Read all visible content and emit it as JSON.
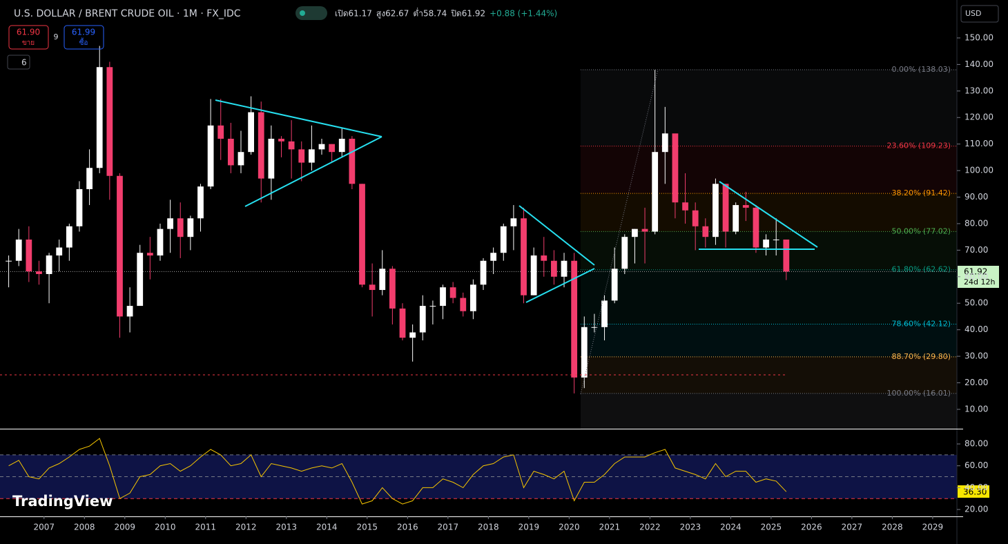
{
  "header": {
    "symbol": "U.S. DOLLAR / BRENT CRUDE OIL · 1M · FX_IDC",
    "stats": [
      {
        "label": "เปิด",
        "value": "61.17"
      },
      {
        "label": "สูง",
        "value": "62.67"
      },
      {
        "label": "ต่ำ",
        "value": "58.74"
      },
      {
        "label": "ปิด",
        "value": "61.92"
      },
      {
        "label": "",
        "value": "+0.88 (+1.44%)"
      }
    ],
    "sell_price": "61.90",
    "sell_label": "ขาย",
    "spread": "9",
    "buy_price": "61.99",
    "buy_label": "ซื้อ",
    "indicators": "6",
    "currency": "USD",
    "logo": "TradingView",
    "price_tag": "61.92",
    "countdown": "24d 12h",
    "rsi_tag": "36.30"
  },
  "chart_data": [
    {
      "type": "candlestick",
      "up_color": "#ffffff",
      "down_color": "#f23d6d",
      "x": [
        2006.125,
        2006.375,
        2006.625,
        2006.875,
        2007.125,
        2007.375,
        2007.625,
        2007.875,
        2008.125,
        2008.375,
        2008.625,
        2008.875,
        2009.125,
        2009.375,
        2009.625,
        2009.875,
        2010.125,
        2010.375,
        2010.625,
        2010.875,
        2011.125,
        2011.375,
        2011.625,
        2011.875,
        2012.125,
        2012.375,
        2012.625,
        2012.875,
        2013.125,
        2013.375,
        2013.625,
        2013.875,
        2014.125,
        2014.375,
        2014.625,
        2014.875,
        2015.125,
        2015.375,
        2015.625,
        2015.875,
        2016.125,
        2016.375,
        2016.625,
        2016.875,
        2017.125,
        2017.375,
        2017.625,
        2017.875,
        2018.125,
        2018.375,
        2018.625,
        2018.875,
        2019.125,
        2019.375,
        2019.625,
        2019.875,
        2020.125,
        2020.375,
        2020.625,
        2020.875,
        2021.125,
        2021.375,
        2021.625,
        2021.875,
        2022.125,
        2022.375,
        2022.625,
        2022.875,
        2023.125,
        2023.375,
        2023.625,
        2023.875,
        2024.125,
        2024.375,
        2024.625,
        2024.875,
        2025.125,
        2025.375
      ],
      "close": [
        66,
        74,
        62,
        61,
        68,
        71,
        79,
        93,
        101,
        139,
        98,
        45,
        49,
        69,
        68,
        78,
        82,
        75,
        82,
        94,
        117,
        112,
        102,
        107,
        122,
        97,
        112,
        111,
        108,
        103,
        108,
        110,
        107,
        112,
        95,
        57,
        55,
        63,
        48,
        37,
        39,
        49,
        49,
        56,
        52,
        47,
        57,
        66,
        69,
        79,
        82,
        53,
        68,
        66,
        60,
        66,
        22,
        41,
        41,
        51,
        63,
        75,
        78,
        77,
        107,
        114,
        88,
        85,
        79,
        75,
        95,
        77,
        87,
        86,
        71,
        74,
        74,
        61.92
      ],
      "high": [
        68,
        78,
        79,
        66,
        69,
        74,
        80,
        96,
        108,
        147,
        141,
        99,
        56,
        72,
        75,
        80,
        89,
        88,
        83,
        95,
        127,
        127,
        118,
        115,
        128,
        126,
        117,
        113,
        119,
        111,
        117,
        112,
        110,
        116,
        113,
        95,
        65,
        70,
        64,
        50,
        42,
        53,
        51,
        57,
        58,
        54,
        59,
        67,
        71,
        80,
        87,
        86,
        71,
        75,
        70,
        69,
        69,
        45,
        46,
        53,
        71,
        76,
        78,
        86,
        138,
        124,
        113,
        99,
        88,
        82,
        97,
        95,
        88,
        92,
        87,
        76,
        82,
        62.67
      ],
      "low": [
        56,
        64,
        58,
        57,
        50,
        62,
        66,
        77,
        87,
        99,
        89,
        37,
        39,
        50,
        59,
        66,
        69,
        67,
        70,
        77,
        93,
        104,
        99,
        99,
        106,
        88,
        89,
        105,
        97,
        96,
        100,
        106,
        103,
        105,
        93,
        56,
        45,
        53,
        42,
        36,
        28,
        36,
        42,
        44,
        50,
        45,
        44,
        55,
        61,
        66,
        70,
        50,
        53,
        60,
        57,
        56,
        16,
        18,
        39,
        36,
        50,
        61,
        65,
        65,
        76,
        95,
        82,
        80,
        70,
        71,
        72,
        71,
        76,
        81,
        69,
        68,
        68,
        58.74
      ],
      "xlim": [
        2005.91,
        2029.6
      ],
      "xticks": [
        2007,
        2008,
        2009,
        2010,
        2011,
        2012,
        2013,
        2014,
        2015,
        2016,
        2017,
        2018,
        2019,
        2020,
        2021,
        2022,
        2023,
        2024,
        2025,
        2026,
        2027,
        2028,
        2029
      ],
      "ylim": [
        2.7,
        164.3
      ],
      "yticks": [
        {
          "value": 10,
          "label": "10.00"
        },
        {
          "value": 20,
          "label": "20.00"
        },
        {
          "value": 30,
          "label": "30.00"
        },
        {
          "value": 40,
          "label": "40.00"
        },
        {
          "value": 50,
          "label": "50.00"
        },
        {
          "value": 60,
          "label": "60.00"
        },
        {
          "value": 70,
          "label": "70.00"
        },
        {
          "value": 80,
          "label": "80.00"
        },
        {
          "value": 90,
          "label": "90.00"
        },
        {
          "value": 100,
          "label": "100.00"
        },
        {
          "value": 110,
          "label": "110.00"
        },
        {
          "value": 120,
          "label": "120.00"
        },
        {
          "value": 130,
          "label": "130.00"
        },
        {
          "value": 140,
          "label": "140.00"
        },
        {
          "value": 150,
          "label": "150.00"
        }
      ],
      "last_price": 61.92,
      "fib_levels": [
        {
          "label": "0.00% (138.03)",
          "value": 138.03,
          "color": "#787b86"
        },
        {
          "label": "23.60% (109.23)",
          "value": 109.23,
          "color": "#f23645"
        },
        {
          "label": "38.20% (91.42)",
          "value": 91.42,
          "color": "#ff9800"
        },
        {
          "label": "50.00% (77.02)",
          "value": 77.02,
          "color": "#4caf50"
        },
        {
          "label": "61.80% (62.62)",
          "value": 62.62,
          "color": "#089981"
        },
        {
          "label": "78.60% (42.12)",
          "value": 42.12,
          "color": "#00bcd4"
        },
        {
          "label": "88.70% (29.80)",
          "value": 29.8,
          "color": "#ffb74d"
        },
        {
          "label": "100.00% (16.01)",
          "value": 16.01,
          "color": "#787b86"
        }
      ]
    },
    {
      "type": "line",
      "color": "#f7c600",
      "values": [
        60,
        65,
        50,
        48,
        58,
        62,
        68,
        75,
        78,
        85,
        60,
        30,
        35,
        50,
        52,
        60,
        62,
        55,
        60,
        68,
        75,
        70,
        60,
        62,
        70,
        50,
        62,
        60,
        58,
        55,
        58,
        60,
        58,
        62,
        45,
        25,
        28,
        40,
        30,
        25,
        28,
        40,
        40,
        48,
        45,
        40,
        52,
        60,
        62,
        68,
        70,
        40,
        55,
        52,
        48,
        55,
        28,
        45,
        45,
        52,
        62,
        68,
        68,
        68,
        72,
        75,
        58,
        55,
        52,
        48,
        62,
        50,
        55,
        55,
        45,
        48,
        46,
        36.3
      ],
      "ylim": [
        13.7,
        93.3
      ],
      "yticks": [
        {
          "value": 20,
          "label": "20.00"
        },
        {
          "value": 40,
          "label": "40.00"
        },
        {
          "value": 60,
          "label": "60.00"
        },
        {
          "value": 80,
          "label": "80.00"
        }
      ],
      "levels": [
        30,
        50,
        70
      ]
    }
  ]
}
